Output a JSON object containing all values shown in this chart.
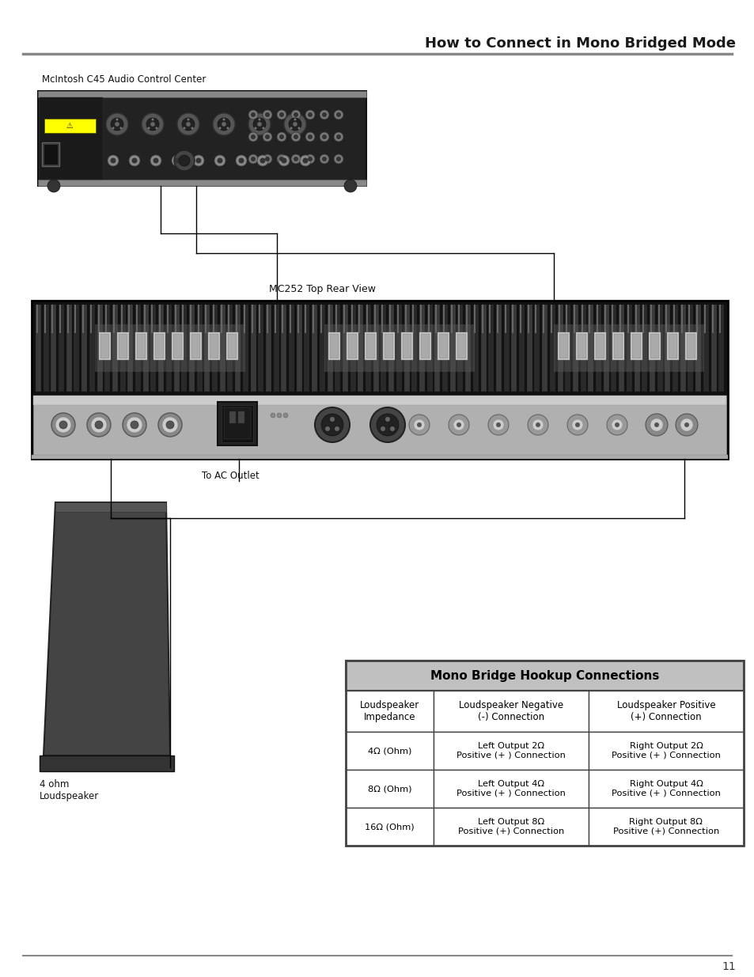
{
  "title": "How to Connect in Mono Bridged Mode",
  "page_number": "11",
  "background_color": "#ffffff",
  "title_color": "#1a1a1a",
  "title_fontsize": 13,
  "preamp_label": "McIntosh C45 Audio Control Center",
  "amp_label": "MC252 Top Rear View",
  "ac_label": "To AC Outlet",
  "speaker_label": "4 ohm\nLoudspeaker",
  "table_title": "Mono Bridge Hookup Connections",
  "table_header_bg": "#c0c0c0",
  "table_col_headers": [
    "Loudspeaker\nImpedance",
    "Loudspeaker Negative\n(-) Connection",
    "Loudspeaker Positive\n(+) Connection"
  ],
  "table_rows": [
    [
      "4Ω (Ohm)",
      "Left Output 2Ω\nPositive (+ ) Connection",
      "Right Output 2Ω\nPositive (+ ) Connection"
    ],
    [
      "8Ω (Ohm)",
      "Left Output 4Ω\nPositive (+ ) Connection",
      "Right Output 4Ω\nPositive (+ ) Connection"
    ],
    [
      "16Ω (Ohm)",
      "Left Output 8Ω\nPositive (+) Connection",
      "Right Output 8Ω\nPositive (+) Connection"
    ]
  ],
  "line_color": "#000000"
}
